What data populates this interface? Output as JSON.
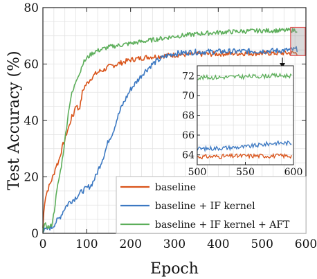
{
  "chart_data": {
    "type": "line",
    "title": "",
    "xlabel": "Epoch",
    "ylabel": "Test Accuracy (%)",
    "xlim": [
      0,
      600
    ],
    "ylim": [
      0,
      80
    ],
    "xticks": [
      0,
      100,
      200,
      300,
      400,
      500,
      600
    ],
    "yticks": [
      0,
      20,
      40,
      60,
      80
    ],
    "grid": true,
    "legend_position": "bottom-right",
    "series": [
      {
        "name": "baseline",
        "color": "#d95319",
        "x": [
          0,
          3,
          6,
          10,
          15,
          20,
          25,
          30,
          35,
          40,
          45,
          50,
          55,
          60,
          65,
          70,
          75,
          80,
          85,
          90,
          95,
          100,
          110,
          120,
          130,
          140,
          150,
          160,
          170,
          180,
          190,
          200,
          220,
          240,
          260,
          280,
          300,
          330,
          360,
          400,
          450,
          500,
          550,
          580
        ],
        "values": [
          2,
          10,
          13,
          15,
          17,
          19,
          21,
          24,
          25,
          28,
          31,
          33,
          36,
          38,
          41,
          42,
          46,
          44,
          45,
          50,
          52,
          53,
          55,
          56.5,
          57.5,
          58,
          59,
          59.5,
          60,
          60.5,
          61,
          61.5,
          62,
          62.5,
          62.7,
          63,
          63.2,
          63.4,
          63.5,
          63.6,
          63.8,
          63.8,
          63.9,
          63.9
        ]
      },
      {
        "name": "baseline + IF kernel",
        "color": "#3b78c2",
        "x": [
          0,
          5,
          10,
          15,
          20,
          25,
          30,
          40,
          50,
          60,
          70,
          80,
          90,
          100,
          110,
          120,
          130,
          140,
          150,
          160,
          170,
          180,
          190,
          200,
          210,
          220,
          230,
          240,
          250,
          260,
          270,
          280,
          290,
          300,
          320,
          340,
          360,
          400,
          450,
          500,
          550,
          580
        ],
        "values": [
          1,
          1,
          1.5,
          2,
          2,
          3,
          4,
          6,
          9,
          11,
          12,
          13.5,
          15,
          16,
          17,
          20,
          24,
          28,
          33,
          36,
          41,
          45,
          48,
          51,
          53,
          55,
          57,
          58.5,
          60,
          61,
          62,
          62.8,
          63.3,
          63.7,
          64,
          64.2,
          64.3,
          64.4,
          64.5,
          64.6,
          64.8,
          65.2
        ]
      },
      {
        "name": "baseline + IF kernel + AFT",
        "color": "#5cae5a",
        "x": [
          0,
          5,
          10,
          15,
          20,
          25,
          30,
          35,
          40,
          45,
          50,
          55,
          60,
          65,
          70,
          75,
          80,
          85,
          90,
          100,
          110,
          120,
          130,
          140,
          150,
          160,
          180,
          200,
          220,
          240,
          260,
          280,
          300,
          330,
          360,
          400,
          450,
          500,
          550,
          580
        ],
        "values": [
          1,
          3,
          2.5,
          2,
          3,
          7,
          13,
          18,
          22,
          27,
          33,
          39,
          45,
          49,
          51,
          54,
          56,
          57,
          60,
          62,
          63.5,
          64.5,
          65,
          65.5,
          66,
          66.3,
          66.8,
          67.3,
          67.8,
          68.3,
          68.8,
          69.3,
          69.8,
          70.3,
          70.8,
          71.2,
          71.6,
          71.8,
          71.9,
          72
        ]
      }
    ],
    "inset": {
      "xlim": [
        500,
        600
      ],
      "ylim": [
        63,
        73
      ],
      "xticks": [
        500,
        550,
        600
      ],
      "yticks": [
        64,
        66,
        68,
        70,
        72
      ]
    }
  }
}
